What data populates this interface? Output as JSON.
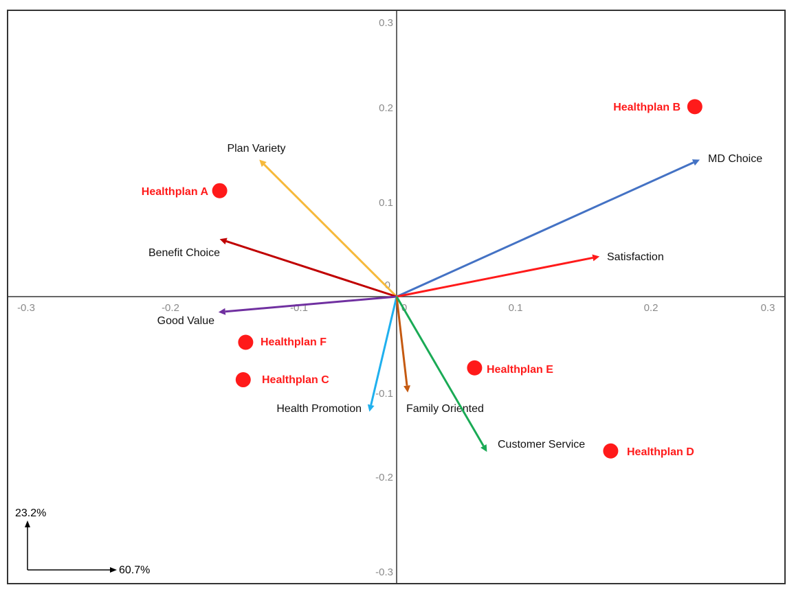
{
  "chart_data": {
    "type": "scatter",
    "subtype": "biplot",
    "title": "",
    "xlabel": "",
    "ylabel": "",
    "xlim": [
      -0.314,
      0.314
    ],
    "ylim": [
      -0.314,
      0.314
    ],
    "x_ticks": [
      "-0.3",
      "-0.2",
      "-0.1",
      "0",
      "0.1",
      "0.2",
      "0.3"
    ],
    "y_ticks": [
      "0.3",
      "0.2",
      "0.1",
      "0",
      "-0.1",
      "-0.2",
      "-0.3"
    ],
    "grid": false,
    "points": [
      {
        "name": "Healthplan A",
        "x": -0.143,
        "y": 0.116
      },
      {
        "name": "Healthplan B",
        "x": 0.241,
        "y": 0.208
      },
      {
        "name": "Healthplan C",
        "x": -0.124,
        "y": -0.091
      },
      {
        "name": "Healthplan D",
        "x": 0.173,
        "y": -0.169
      },
      {
        "name": "Healthplan E",
        "x": 0.063,
        "y": -0.078
      },
      {
        "name": "Healthplan F",
        "x": -0.122,
        "y": -0.05
      }
    ],
    "point_color": "#ff1a1a",
    "vectors": [
      {
        "name": "MD Choice",
        "x": 0.245,
        "y": 0.15,
        "color": "#4472c4"
      },
      {
        "name": "Satisfaction",
        "x": 0.164,
        "y": 0.044,
        "color": "#ff1a1a"
      },
      {
        "name": "Plan Variety",
        "x": -0.111,
        "y": 0.15,
        "color": "#f6b93b"
      },
      {
        "name": "Benefit Choice",
        "x": -0.143,
        "y": 0.063,
        "color": "#c00000"
      },
      {
        "name": "Good Value",
        "x": -0.144,
        "y": -0.017,
        "color": "#7030a0"
      },
      {
        "name": "Health Promotion",
        "x": -0.022,
        "y": -0.126,
        "color": "#1fb0ee"
      },
      {
        "name": "Family Oriented",
        "x": 0.009,
        "y": -0.105,
        "color": "#c55a11"
      },
      {
        "name": "Customer Service",
        "x": 0.073,
        "y": -0.17,
        "color": "#1aaa55"
      }
    ],
    "axis_variance": {
      "x": "60.7%",
      "y": "23.2%"
    }
  }
}
